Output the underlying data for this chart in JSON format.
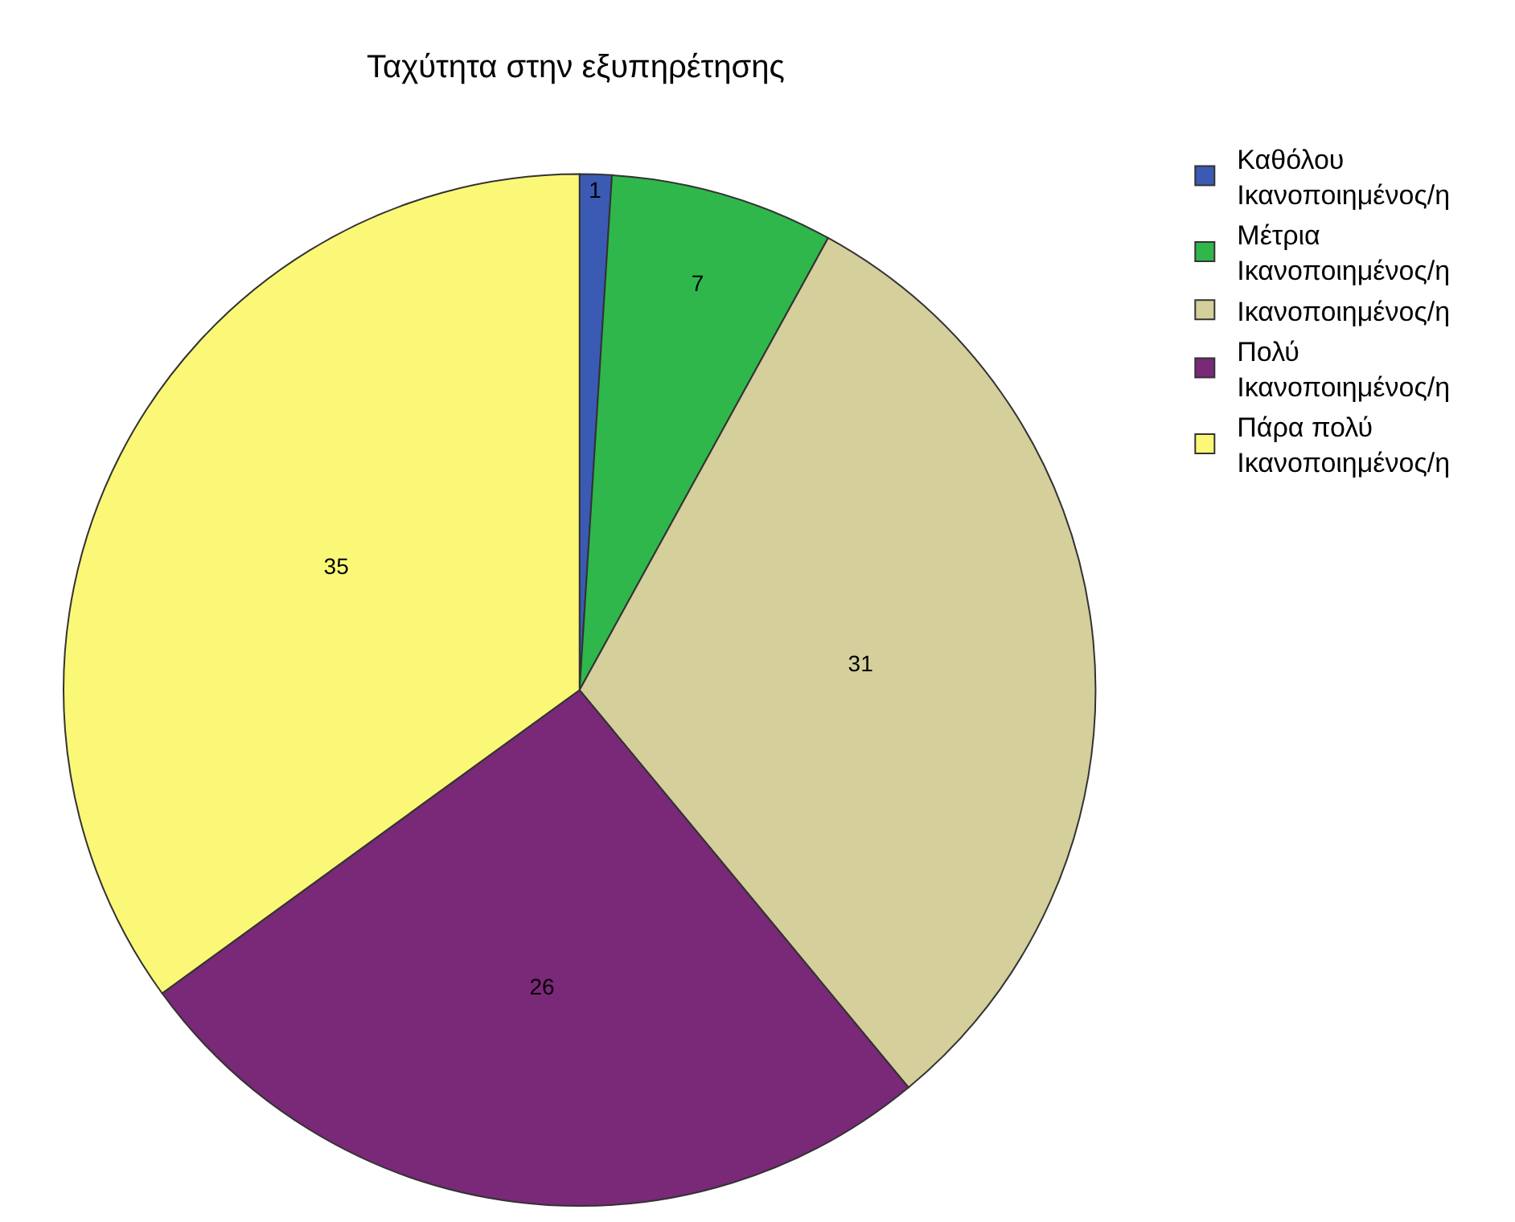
{
  "chart_data": {
    "type": "pie",
    "title": "Ταχύτητα στην εξυπηρέτησης",
    "categories": [
      "Καθόλου Ικανοποιημένος/η",
      "Μέτρια Ικανοποιημένος/η",
      "Ικανοποιημένος/η",
      "Πολύ Ικανοποιημένος/η",
      "Πάρα πολύ Ικανοποιημένος/η"
    ],
    "values": [
      1,
      7,
      31,
      26,
      35
    ],
    "colors": [
      "#3a5ab4",
      "#2fb74b",
      "#d4cf9b",
      "#7a2878",
      "#fbf878"
    ],
    "data_labels": true,
    "legend": "top right"
  }
}
